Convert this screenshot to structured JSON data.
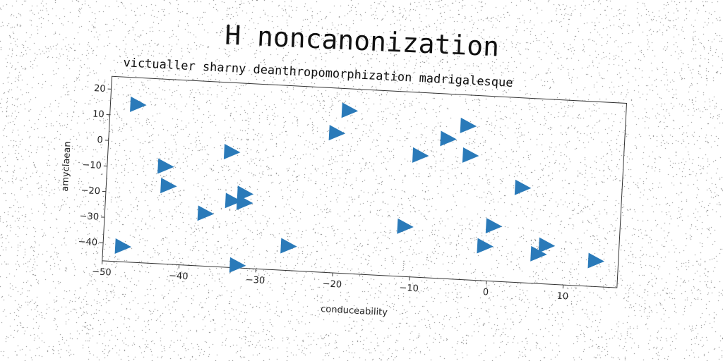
{
  "title": "H noncanonization",
  "chart_data": {
    "type": "scatter",
    "title": "victualler sharny deanthropomorphization madrigalesque",
    "xlabel": "conduceability",
    "ylabel": "amyclaean",
    "xlim": [
      -50,
      17
    ],
    "ylim": [
      -47,
      25
    ],
    "xticks": [
      -50,
      -40,
      -30,
      -20,
      -10,
      0,
      10
    ],
    "yticks": [
      20,
      10,
      0,
      -10,
      -20,
      -30,
      -40
    ],
    "marker": "triangle-right",
    "colors": {
      "marker": "#2a7ab9",
      "axis": "#333333",
      "noise": "#6e6e6e"
    },
    "points": [
      {
        "x": -46.5,
        "y": 14.5
      },
      {
        "x": -42.5,
        "y": -9
      },
      {
        "x": -42,
        "y": -16.5
      },
      {
        "x": -47.5,
        "y": -41
      },
      {
        "x": -37,
        "y": -26.5
      },
      {
        "x": -34,
        "y": -2
      },
      {
        "x": -33.5,
        "y": -21
      },
      {
        "x": -32,
        "y": -18
      },
      {
        "x": -32,
        "y": -21.5
      },
      {
        "x": -32.5,
        "y": -46
      },
      {
        "x": -26,
        "y": -37.5
      },
      {
        "x": -20.5,
        "y": 7.5
      },
      {
        "x": -19,
        "y": 16.5
      },
      {
        "x": -11,
        "y": -27.5
      },
      {
        "x": -9.5,
        "y": 0.5
      },
      {
        "x": -6,
        "y": 7.5
      },
      {
        "x": -3.5,
        "y": 13
      },
      {
        "x": -3,
        "y": 1.5
      },
      {
        "x": -0.5,
        "y": -33.5
      },
      {
        "x": 0.5,
        "y": -25.5
      },
      {
        "x": 4,
        "y": -10
      },
      {
        "x": 6.5,
        "y": -35.5
      },
      {
        "x": 7.5,
        "y": -32
      },
      {
        "x": 14,
        "y": -37
      }
    ]
  }
}
